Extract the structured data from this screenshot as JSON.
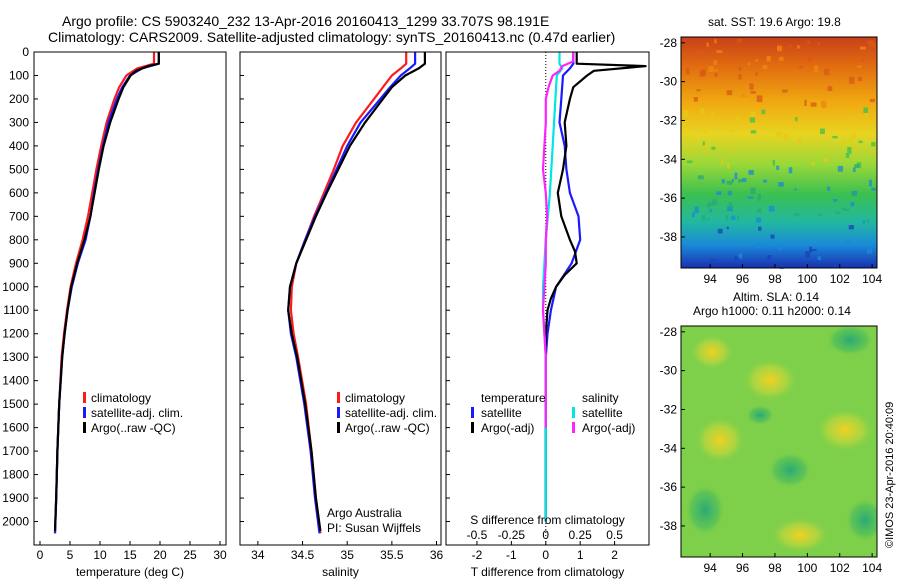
{
  "header": {
    "line1": "Argo profile: CS 5903240_232 13-Apr-2016 20160413_1299 33.707S 98.191E",
    "line2": "Climatology: CARS2009. Satellite-adjusted climatology: synTS_20160413.nc (0.47d earlier)"
  },
  "credits": {
    "program": "Argo Australia",
    "pi": "PI: Susan Wijffels",
    "stamp": "©IMOS 23-Apr-2016 20:40:09"
  },
  "colors": {
    "climatology": "#ff1a1a",
    "satellite": "#1a1aff",
    "argo": "#000000",
    "sat_salinity": "#00e5e5",
    "argo_salinity": "#ff22ff"
  },
  "chart_data": [
    {
      "type": "line",
      "xlabel": "temperature (deg C)",
      "ylabel": "",
      "xlim": [
        -1,
        31
      ],
      "ylim": [
        2100,
        0
      ],
      "xticks": [
        0,
        5,
        10,
        15,
        20,
        25,
        30
      ],
      "yticks": [
        0,
        100,
        200,
        300,
        400,
        500,
        600,
        700,
        800,
        900,
        1000,
        1100,
        1200,
        1300,
        1400,
        1500,
        1600,
        1700,
        1800,
        1900,
        2000
      ],
      "legend": [
        "climatology",
        "satellite-adj. clim.",
        "Argo(..raw -QC)"
      ],
      "series": [
        {
          "name": "climatology",
          "color": "#ff1a1a",
          "depth": [
            0,
            50,
            70,
            100,
            150,
            200,
            300,
            400,
            500,
            600,
            700,
            800,
            900,
            1000,
            1100,
            1200,
            1300,
            1500,
            1700,
            1900,
            2050
          ],
          "values": [
            19.0,
            19.0,
            16.2,
            14.4,
            13.2,
            12.4,
            11.1,
            10.2,
            9.4,
            8.7,
            8.0,
            7.1,
            6.0,
            5.1,
            4.5,
            4.0,
            3.6,
            3.2,
            2.9,
            2.7,
            2.5
          ]
        },
        {
          "name": "satellite-adj. clim.",
          "color": "#1a1aff",
          "depth": [
            0,
            50,
            70,
            100,
            150,
            200,
            300,
            400,
            500,
            600,
            700,
            800,
            900,
            1000,
            1100,
            1200,
            1300,
            1500,
            1700,
            1900,
            2050
          ],
          "values": [
            19.8,
            19.8,
            17.0,
            15.0,
            13.7,
            12.8,
            11.4,
            10.5,
            9.7,
            9.0,
            8.4,
            7.6,
            6.3,
            5.3,
            4.6,
            4.1,
            3.7,
            3.2,
            2.9,
            2.7,
            2.5
          ]
        },
        {
          "name": "Argo(..raw -QC)",
          "color": "#000000",
          "depth": [
            0,
            50,
            60,
            80,
            100,
            150,
            200,
            300,
            400,
            500,
            600,
            700,
            800,
            900,
            1000,
            1100,
            1200,
            1300,
            1500,
            1700,
            1900,
            2040
          ],
          "values": [
            19.8,
            19.8,
            18.0,
            16.0,
            15.1,
            13.9,
            13.1,
            11.7,
            10.6,
            9.8,
            9.1,
            8.4,
            7.4,
            6.2,
            5.2,
            4.6,
            4.1,
            3.7,
            3.2,
            2.9,
            2.7,
            2.5
          ]
        }
      ]
    },
    {
      "type": "line",
      "xlabel": "salinity",
      "ylabel": "",
      "xlim": [
        33.8,
        36.05
      ],
      "ylim": [
        2100,
        0
      ],
      "xticks": [
        34,
        34.5,
        35,
        35.5,
        36
      ],
      "legend": [
        "climatology",
        "satellite-adj. clim.",
        "Argo(..raw -QC)"
      ],
      "series": [
        {
          "name": "climatology",
          "color": "#ff1a1a",
          "depth": [
            0,
            50,
            70,
            100,
            150,
            200,
            300,
            400,
            500,
            600,
            700,
            800,
            900,
            1000,
            1100,
            1200,
            1300,
            1500,
            1700,
            1900,
            2050
          ],
          "values": [
            35.66,
            35.66,
            35.6,
            35.5,
            35.4,
            35.3,
            35.1,
            34.95,
            34.85,
            34.74,
            34.63,
            34.53,
            34.43,
            34.38,
            34.37,
            34.4,
            34.45,
            34.54,
            34.6,
            34.65,
            34.7
          ]
        },
        {
          "name": "satellite-adj. clim.",
          "color": "#1a1aff",
          "depth": [
            0,
            50,
            70,
            100,
            150,
            200,
            300,
            400,
            500,
            600,
            700,
            800,
            900,
            1000,
            1100,
            1200,
            1300,
            1500,
            1700,
            1900,
            2050
          ],
          "values": [
            35.76,
            35.76,
            35.7,
            35.6,
            35.48,
            35.37,
            35.15,
            35.0,
            34.88,
            34.76,
            34.64,
            34.53,
            34.43,
            34.36,
            34.34,
            34.37,
            34.43,
            34.52,
            34.59,
            34.64,
            34.69
          ]
        },
        {
          "name": "Argo(..raw -QC)",
          "color": "#000000",
          "depth": [
            0,
            50,
            70,
            100,
            150,
            200,
            300,
            400,
            500,
            600,
            700,
            800,
            900,
            1000,
            1100,
            1200,
            1300,
            1500,
            1700,
            1900,
            2040
          ],
          "values": [
            35.87,
            35.87,
            35.8,
            35.65,
            35.5,
            35.4,
            35.2,
            35.03,
            34.9,
            34.77,
            34.65,
            34.54,
            34.43,
            34.36,
            34.34,
            34.38,
            34.44,
            34.53,
            34.6,
            34.65,
            34.7
          ]
        }
      ]
    },
    {
      "type": "line",
      "xlabel": "T difference from climatology",
      "x2label": "S difference from climatology",
      "xlim": [
        -2.9,
        3.0
      ],
      "ylim": [
        2100,
        0
      ],
      "xticks": [
        -2,
        -1,
        0,
        1,
        2
      ],
      "x2ticks": [
        "-0.5",
        "-0.25",
        "0",
        "0.25",
        "0.5"
      ],
      "x2tick_values": [
        -0.5,
        -0.25,
        0,
        0.25,
        0.5
      ],
      "legend_titles": [
        "temperature",
        "salinity"
      ],
      "legend": [
        "satellite",
        "Argo(-adj)",
        "satellite",
        "Argo(-adj)"
      ],
      "series": [
        {
          "name": "satellite",
          "color": "#1a1aff",
          "depth": [
            0,
            50,
            70,
            100,
            200,
            300,
            400,
            500,
            600,
            700,
            800,
            900,
            1000,
            1100,
            1200,
            1300,
            1500,
            1800,
            2000
          ],
          "values": [
            0.8,
            0.8,
            0.7,
            0.5,
            0.45,
            0.4,
            0.55,
            0.6,
            0.7,
            0.95,
            1.0,
            0.75,
            0.3,
            0.15,
            0.05,
            0.0,
            0.0,
            0.0,
            0.0
          ]
        },
        {
          "name": "Argo(-adj)",
          "color": "#000000",
          "depth": [
            0,
            50,
            60,
            80,
            100,
            150,
            200,
            300,
            400,
            500,
            600,
            700,
            800,
            850,
            900,
            950,
            1000,
            1050,
            1100,
            1200,
            1300,
            1500,
            1800,
            2000
          ],
          "values": [
            0.9,
            0.9,
            2.9,
            1.4,
            1.2,
            0.8,
            0.7,
            0.55,
            0.6,
            0.5,
            0.35,
            0.45,
            0.7,
            0.85,
            0.9,
            0.55,
            0.3,
            0.15,
            0.05,
            0.0,
            0.0,
            0.0,
            0.0,
            0.0
          ]
        },
        {
          "name": "satellite",
          "color": "#00e5e5",
          "depth": [
            0,
            50,
            70,
            100,
            200,
            400,
            600,
            800,
            900,
            1000,
            1100,
            1200,
            1300,
            1500,
            1800,
            2000
          ],
          "values": [
            0.1,
            0.1,
            0.12,
            0.08,
            0.07,
            0.05,
            0.03,
            0.0,
            -0.01,
            -0.02,
            -0.02,
            -0.01,
            0.0,
            0.0,
            0.0,
            0.0
          ]
        },
        {
          "name": "Argo(-adj)",
          "color": "#ff22ff",
          "depth": [
            0,
            40,
            60,
            80,
            100,
            150,
            200,
            300,
            400,
            500,
            600,
            700,
            800,
            900,
            1000,
            1100,
            1200,
            1300,
            1400,
            1600
          ],
          "values": [
            0.2,
            0.2,
            0.12,
            0.1,
            0.05,
            0.02,
            0.0,
            0.0,
            -0.01,
            -0.02,
            0.0,
            0.01,
            0.0,
            0.0,
            -0.01,
            -0.02,
            -0.01,
            0.0,
            0.0,
            0.0
          ]
        }
      ]
    },
    {
      "type": "heatmap",
      "title": "sat. SST: 19.6 Argo: 19.8",
      "xlim": [
        92.2,
        104.3
      ],
      "ylim": [
        -39.6,
        -27.7
      ],
      "xticks": [
        "94",
        "96",
        "98",
        "100",
        "102",
        "104"
      ],
      "yticks": [
        "-28",
        "-30",
        "-32",
        "-34",
        "-36",
        "-38"
      ]
    },
    {
      "type": "heatmap",
      "title": "Altim. SLA: 0.14",
      "subtitle": "Argo h1000: 0.11 h2000: 0.14",
      "xlim": [
        92.2,
        104.3
      ],
      "ylim": [
        -39.6,
        -27.7
      ],
      "xticks": [
        "94",
        "96",
        "98",
        "100",
        "102",
        "104"
      ],
      "yticks": [
        "-28",
        "-30",
        "-32",
        "-34",
        "-36",
        "-38"
      ]
    }
  ]
}
